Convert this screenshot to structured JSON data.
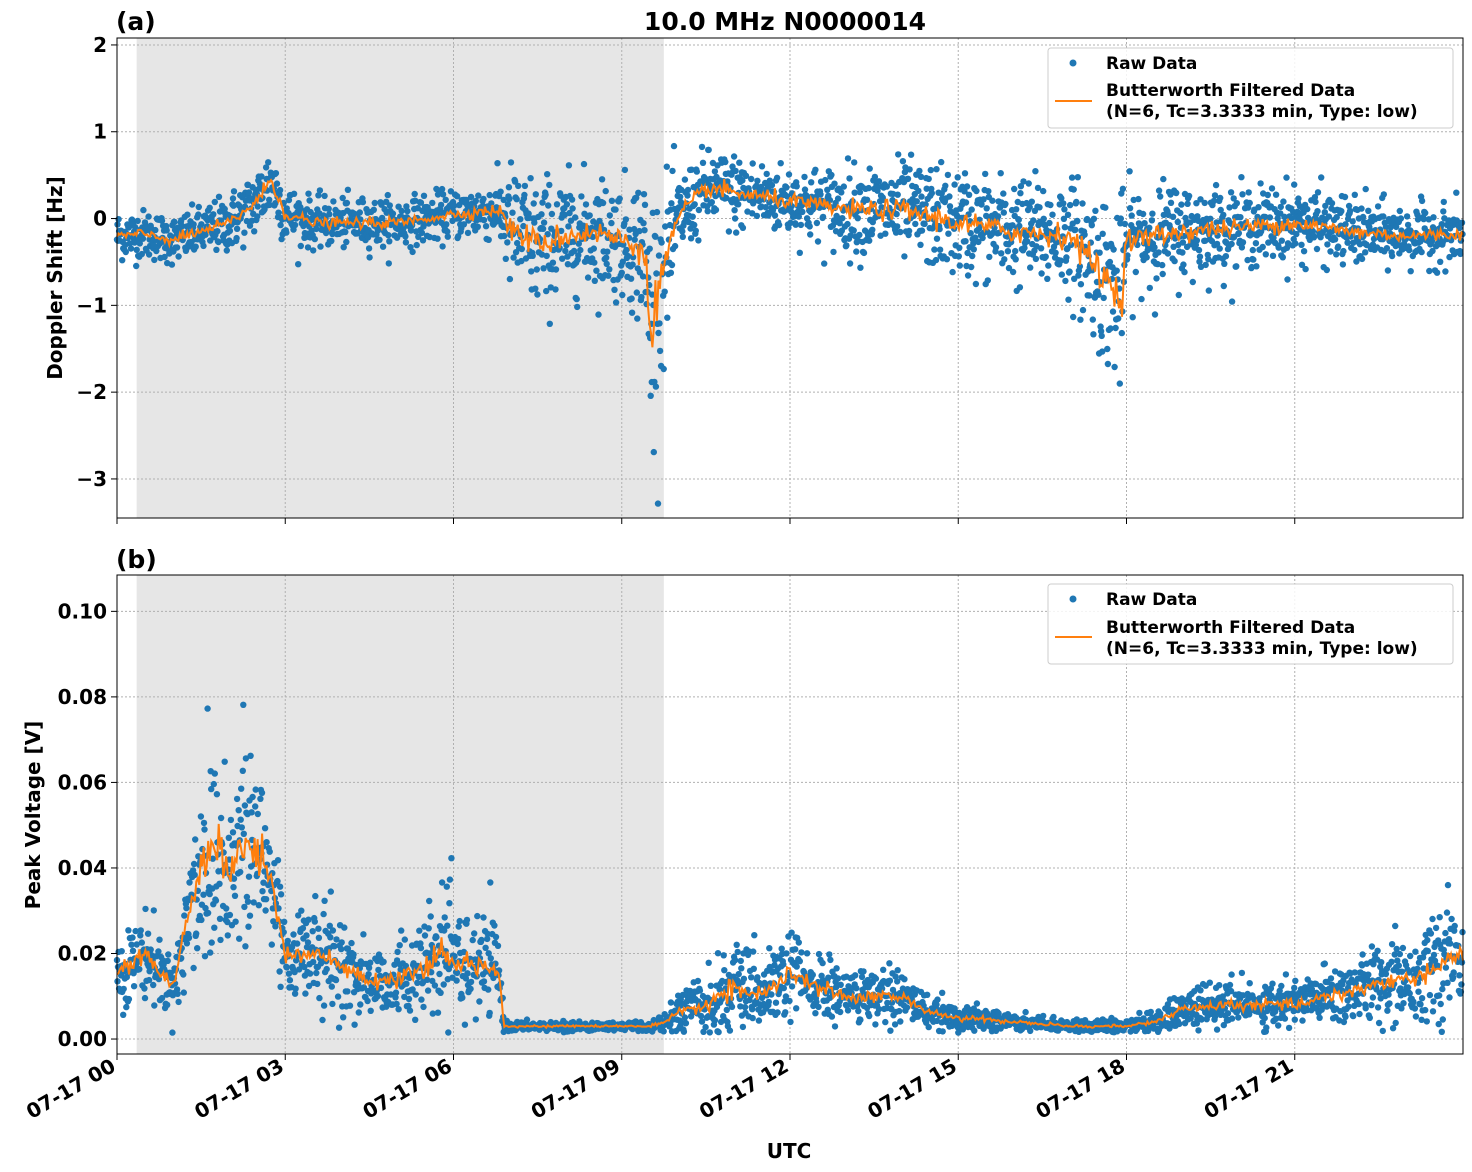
{
  "figure": {
    "title": "10.0 MHz N0000014",
    "xlabel": "UTC",
    "colors": {
      "raw": "#1f77b4",
      "filtered": "#ff7f0e",
      "night_shade": "#e6e6e6"
    }
  },
  "chart_data": [
    {
      "type": "scatter",
      "panel_label": "(a)",
      "title": "10.0 MHz N0000014",
      "ylabel": "Doppler Shift [Hz]",
      "xlabel": "",
      "x_range": [
        "07-17 00:00",
        "07-18 00:00"
      ],
      "ylim": [
        -3.45,
        2.08
      ],
      "yticks": [
        2,
        1,
        0,
        -1,
        -2,
        -3
      ],
      "ytick_labels": [
        "2",
        "1",
        "0",
        "−1",
        "−2",
        "−3"
      ],
      "shaded_x": [
        0.35,
        9.75
      ],
      "grid": true,
      "legend_position": "upper right",
      "legend": [
        "Raw Data",
        "Butterworth Filtered Data",
        "(N=6, Tc=3.3333 min, Type: low)"
      ],
      "series": [
        {
          "name": "Raw Data",
          "kind": "points"
        },
        {
          "name": "Butterworth Filtered Data (N=6, Tc=3.3333 min, Type: low)",
          "kind": "line"
        }
      ],
      "trend_hours": [
        0,
        0.5,
        1,
        1.5,
        2,
        2.5,
        2.75,
        3,
        3.5,
        4,
        5,
        6,
        6.8,
        7,
        7.5,
        8,
        8.5,
        9,
        9.4,
        9.5,
        9.8,
        10,
        10.5,
        11,
        12,
        13,
        14,
        15,
        16,
        17,
        17.9,
        18,
        19,
        20,
        21,
        22,
        23,
        24
      ],
      "trend_values": [
        -0.2,
        -0.18,
        -0.25,
        -0.15,
        -0.05,
        0.2,
        0.45,
        0.05,
        -0.05,
        -0.05,
        -0.05,
        0.05,
        0.1,
        -0.1,
        -0.3,
        -0.2,
        -0.15,
        -0.25,
        -0.35,
        -1.2,
        -0.45,
        0.0,
        0.35,
        0.3,
        0.2,
        0.1,
        0.1,
        -0.05,
        -0.15,
        -0.2,
        -0.9,
        -0.25,
        -0.15,
        -0.1,
        -0.05,
        -0.15,
        -0.2,
        -0.18
      ],
      "spread_values": [
        0.25,
        0.25,
        0.25,
        0.25,
        0.3,
        0.35,
        0.4,
        0.3,
        0.25,
        0.25,
        0.25,
        0.25,
        0.3,
        0.65,
        0.7,
        0.6,
        0.6,
        0.6,
        0.8,
        1.4,
        0.8,
        0.45,
        0.4,
        0.4,
        0.35,
        0.45,
        0.5,
        0.55,
        0.55,
        0.6,
        1.0,
        0.55,
        0.5,
        0.4,
        0.4,
        0.35,
        0.3,
        0.3
      ]
    },
    {
      "type": "scatter",
      "panel_label": "(b)",
      "ylabel": "Peak Voltage [V]",
      "xlabel": "UTC",
      "x_range": [
        "07-17 00:00",
        "07-18 00:00"
      ],
      "ylim": [
        -0.0035,
        0.1085
      ],
      "yticks": [
        0.1,
        0.08,
        0.06,
        0.04,
        0.02,
        0.0
      ],
      "ytick_labels": [
        "0.10",
        "0.08",
        "0.06",
        "0.04",
        "0.02",
        "0.00"
      ],
      "shaded_x": [
        0.35,
        9.75
      ],
      "grid": true,
      "legend_position": "upper right",
      "legend": [
        "Raw Data",
        "Butterworth Filtered Data",
        "(N=6, Tc=3.3333 min, Type: low)"
      ],
      "series": [
        {
          "name": "Raw Data",
          "kind": "points"
        },
        {
          "name": "Butterworth Filtered Data (N=6, Tc=3.3333 min, Type: low)",
          "kind": "line"
        }
      ],
      "trend_hours": [
        0,
        0.5,
        1,
        1.3,
        1.5,
        1.8,
        2,
        2.3,
        2.6,
        2.8,
        3,
        3.5,
        4,
        4.5,
        5,
        5.5,
        5.8,
        6,
        6.5,
        6.8,
        6.9,
        7.5,
        8,
        8.5,
        9,
        9.5,
        9.8,
        10,
        10.5,
        11,
        11.5,
        12,
        12.5,
        13,
        13.5,
        14,
        14.5,
        15,
        16,
        17,
        18,
        18.5,
        19,
        20,
        21,
        21.5,
        22,
        22.5,
        23,
        23.5,
        24
      ],
      "trend_values": [
        0.015,
        0.02,
        0.012,
        0.03,
        0.04,
        0.045,
        0.04,
        0.045,
        0.042,
        0.035,
        0.02,
        0.02,
        0.017,
        0.013,
        0.014,
        0.016,
        0.02,
        0.018,
        0.017,
        0.017,
        0.003,
        0.003,
        0.003,
        0.003,
        0.003,
        0.003,
        0.004,
        0.006,
        0.008,
        0.012,
        0.01,
        0.015,
        0.012,
        0.01,
        0.01,
        0.01,
        0.006,
        0.005,
        0.004,
        0.003,
        0.003,
        0.004,
        0.007,
        0.008,
        0.008,
        0.01,
        0.011,
        0.013,
        0.014,
        0.016,
        0.02
      ],
      "spread_values": [
        0.007,
        0.009,
        0.006,
        0.016,
        0.025,
        0.025,
        0.022,
        0.025,
        0.022,
        0.018,
        0.01,
        0.01,
        0.01,
        0.008,
        0.008,
        0.01,
        0.013,
        0.011,
        0.01,
        0.01,
        0.001,
        0.001,
        0.001,
        0.001,
        0.001,
        0.001,
        0.002,
        0.004,
        0.007,
        0.009,
        0.007,
        0.01,
        0.007,
        0.006,
        0.006,
        0.006,
        0.003,
        0.003,
        0.002,
        0.0015,
        0.0015,
        0.002,
        0.004,
        0.005,
        0.005,
        0.006,
        0.007,
        0.008,
        0.009,
        0.01,
        0.012
      ]
    }
  ],
  "xaxis": {
    "ticks": [
      0,
      3,
      6,
      9,
      12,
      15,
      18,
      21
    ],
    "tick_labels": [
      "07-17 00",
      "07-17 03",
      "07-17 06",
      "07-17 09",
      "07-17 12",
      "07-17 15",
      "07-17 18",
      "07-17 21"
    ]
  }
}
